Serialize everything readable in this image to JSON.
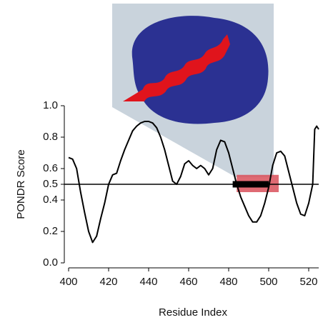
{
  "chart_data": {
    "type": "line",
    "x_label": "Residue Index",
    "y_label": "PONDR Score",
    "x": [
      400,
      402,
      404,
      406,
      408,
      410,
      412,
      414,
      416,
      418,
      420,
      422,
      424,
      426,
      428,
      430,
      432,
      434,
      436,
      438,
      440,
      442,
      444,
      446,
      448,
      450,
      452,
      454,
      456,
      458,
      460,
      462,
      464,
      466,
      468,
      470,
      472,
      474,
      476,
      478,
      480,
      482,
      484,
      486,
      488,
      490,
      492,
      494,
      496,
      498,
      500,
      502,
      504,
      506,
      508,
      510,
      512,
      514,
      516,
      518,
      520,
      522,
      523,
      524,
      525
    ],
    "values": [
      0.67,
      0.66,
      0.6,
      0.45,
      0.32,
      0.2,
      0.13,
      0.17,
      0.28,
      0.38,
      0.5,
      0.56,
      0.57,
      0.65,
      0.72,
      0.78,
      0.84,
      0.87,
      0.89,
      0.9,
      0.9,
      0.89,
      0.86,
      0.8,
      0.72,
      0.62,
      0.52,
      0.5,
      0.55,
      0.63,
      0.65,
      0.62,
      0.6,
      0.62,
      0.6,
      0.56,
      0.6,
      0.72,
      0.78,
      0.77,
      0.7,
      0.6,
      0.5,
      0.42,
      0.36,
      0.3,
      0.26,
      0.26,
      0.3,
      0.38,
      0.48,
      0.62,
      0.7,
      0.71,
      0.68,
      0.58,
      0.48,
      0.38,
      0.31,
      0.3,
      0.38,
      0.5,
      0.85,
      0.87,
      0.85
    ],
    "color": "#000000",
    "threshold": 0.5,
    "segment": [
      482,
      500
    ],
    "shaded_region": {
      "x": [
        484,
        505
      ],
      "y": [
        0.45,
        0.56
      ],
      "color": "#d9505a"
    },
    "xlim": [
      400,
      525
    ],
    "xticks": [
      400,
      420,
      440,
      460,
      480,
      500,
      520
    ],
    "ylim": [
      0,
      1
    ],
    "yticks": [
      {
        "value": 0,
        "label": "0.0"
      },
      0.2,
      0.4,
      0.5,
      0.6,
      0.8,
      {
        "value": 1,
        "label": "1.0"
      }
    ]
  }
}
